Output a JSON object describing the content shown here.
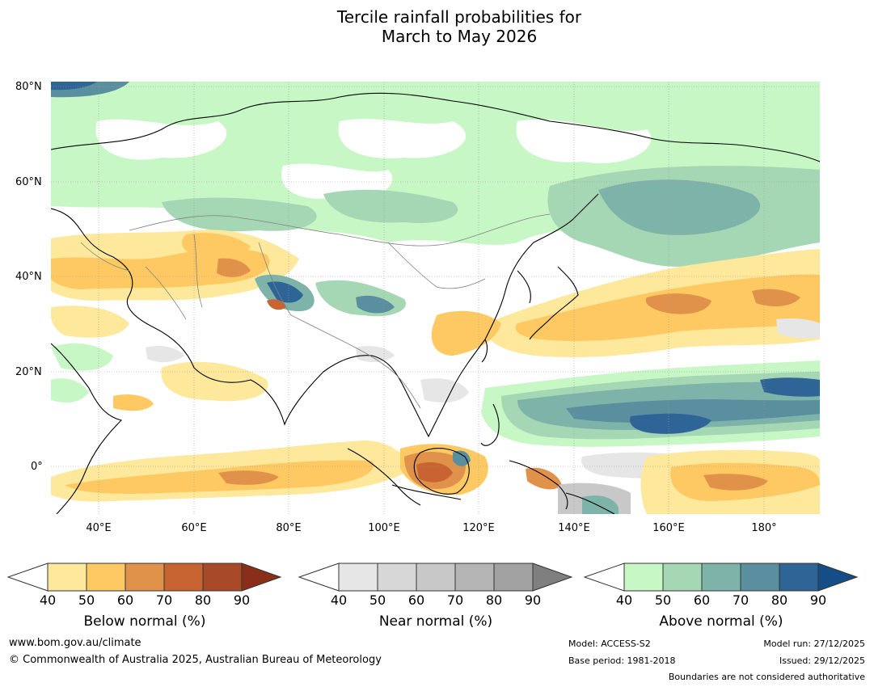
{
  "title": {
    "line1": "Tercile rainfall probabilities for",
    "line2": "March to May 2026"
  },
  "map": {
    "lat_labels": [
      "80°N",
      "60°N",
      "40°N",
      "20°N",
      "0°"
    ],
    "lon_labels": [
      "40°E",
      "60°E",
      "80°E",
      "100°E",
      "120°E",
      "140°E",
      "160°E",
      "180°"
    ]
  },
  "colorbars": {
    "below": {
      "label": "Below normal (%)",
      "ticks": [
        "40",
        "50",
        "60",
        "70",
        "80",
        "90"
      ],
      "colors": [
        "#fee89b",
        "#fec962",
        "#e0924a",
        "#c76432",
        "#a84a27",
        "#8a2e1a"
      ]
    },
    "near": {
      "label": "Near normal (%)",
      "ticks": [
        "40",
        "50",
        "60",
        "70",
        "80",
        "90"
      ],
      "colors": [
        "#e6e6e6",
        "#d7d7d7",
        "#c8c8c8",
        "#b5b5b5",
        "#a2a2a2",
        "#7f7f7f"
      ]
    },
    "above": {
      "label": "Above normal (%)",
      "ticks": [
        "40",
        "50",
        "60",
        "70",
        "80",
        "90"
      ],
      "colors": [
        "#c8f7c6",
        "#a6d7b5",
        "#7db3a8",
        "#5a8fa0",
        "#2f6497",
        "#154d86"
      ]
    }
  },
  "footer": {
    "website": "www.bom.gov.au/climate",
    "copyright": "© Commonwealth of Australia 2025, Australian Bureau of Meteorology",
    "model": "Model: ACCESS-S2",
    "base_period": "Base period: 1981-2018",
    "model_run": "Model run: 27/12/2025",
    "issued": "Issued: 29/12/2025",
    "disclaimer": "Boundaries are not considered authoritative"
  }
}
